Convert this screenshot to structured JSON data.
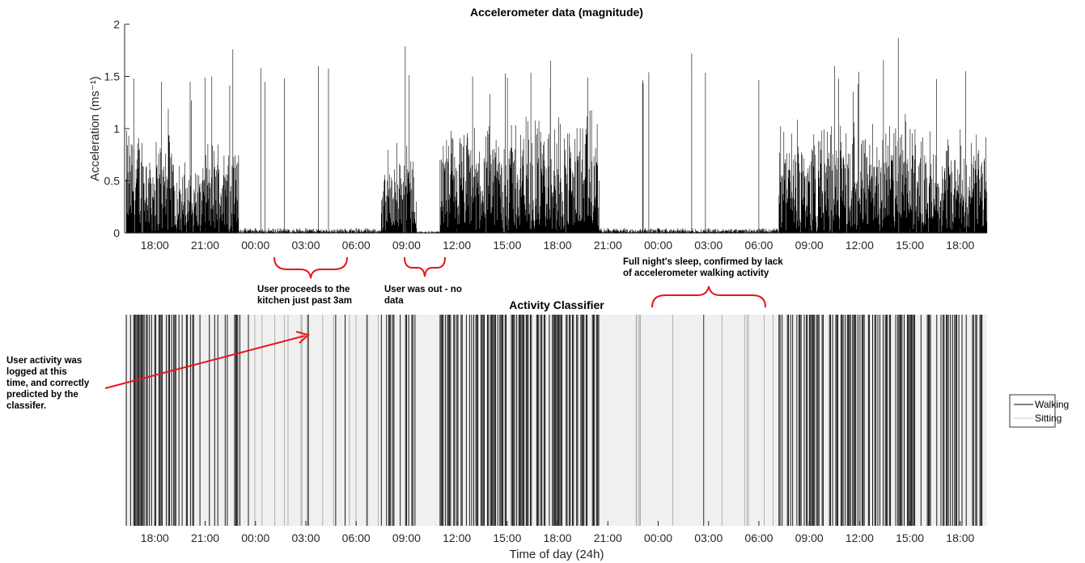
{
  "chart_data": [
    {
      "type": "line",
      "title": "Accelerometer data (magnitude)",
      "ylabel": "Acceleration (ms⁻¹)",
      "xlabel": "",
      "ylim": [
        0,
        2
      ],
      "yticks": [
        "0",
        "0.5",
        "1",
        "1.5",
        "2"
      ],
      "xticks": [
        "18:00",
        "21:00",
        "00:00",
        "03:00",
        "06:00",
        "09:00",
        "12:00",
        "15:00",
        "18:00",
        "21:00",
        "00:00",
        "03:00",
        "06:00",
        "09:00",
        "12:00",
        "15:00",
        "18:00"
      ],
      "x_start_hour": 16.2,
      "x_end_hour": 67.6,
      "grid": false,
      "series": [
        {
          "color": "#000000",
          "segments": [
            {
              "from_hour": 16.3,
              "to_hour": 17.6,
              "typical_max": 1.15,
              "peak": 1.48
            },
            {
              "from_hour": 17.6,
              "to_hour": 19.3,
              "typical_max": 1.05,
              "peak": 1.45
            },
            {
              "from_hour": 19.3,
              "to_hour": 20.8,
              "typical_max": 0.75,
              "peak": 1.45
            },
            {
              "from_hour": 20.8,
              "to_hour": 22.2,
              "typical_max": 1.0,
              "peak": 1.5
            },
            {
              "from_hour": 22.2,
              "to_hour": 23.0,
              "typical_max": 1.05,
              "peak": 1.76
            },
            {
              "from_hour": 23.0,
              "to_hour": 31.5,
              "typical_max": 0.05,
              "peak": 1.6
            },
            {
              "from_hour": 31.5,
              "to_hour": 33.6,
              "typical_max": 0.95,
              "peak": 1.79
            },
            {
              "from_hour": 33.6,
              "to_hour": 35.0,
              "typical_max": 0.02,
              "peak": 0.02
            },
            {
              "from_hour": 35.0,
              "to_hour": 38.0,
              "typical_max": 1.1,
              "peak": 1.5
            },
            {
              "from_hour": 38.0,
              "to_hour": 44.5,
              "typical_max": 1.25,
              "peak": 1.65
            },
            {
              "from_hour": 44.5,
              "to_hour": 55.2,
              "typical_max": 0.05,
              "peak": 1.72
            },
            {
              "from_hour": 55.2,
              "to_hour": 60.0,
              "typical_max": 1.15,
              "peak": 1.6
            },
            {
              "from_hour": 60.0,
              "to_hour": 64.0,
              "typical_max": 1.2,
              "peak": 1.87
            },
            {
              "from_hour": 64.0,
              "to_hour": 67.6,
              "typical_max": 1.05,
              "peak": 1.55
            }
          ]
        }
      ]
    },
    {
      "type": "heatmap",
      "title": "Activity Classifier",
      "xlabel": "Time of day (24h)",
      "ylabel": "",
      "xticks": [
        "18:00",
        "21:00",
        "00:00",
        "03:00",
        "06:00",
        "09:00",
        "12:00",
        "15:00",
        "18:00",
        "21:00",
        "00:00",
        "03:00",
        "06:00",
        "09:00",
        "12:00",
        "15:00",
        "18:00"
      ],
      "x_start_hour": 16.2,
      "x_end_hour": 67.6,
      "legend": {
        "position": "right",
        "entries": [
          {
            "label": "Walking",
            "color": "#000000"
          },
          {
            "label": "Sitting",
            "color": "#f0f0f0"
          }
        ]
      },
      "walking_density": [
        {
          "from_hour": 16.3,
          "to_hour": 18.0,
          "density": 0.7
        },
        {
          "from_hour": 18.0,
          "to_hour": 20.0,
          "density": 0.5
        },
        {
          "from_hour": 20.0,
          "to_hour": 23.2,
          "density": 0.25
        },
        {
          "from_hour": 23.2,
          "to_hour": 31.5,
          "density": 0.03
        },
        {
          "from_hour": 31.5,
          "to_hour": 33.6,
          "density": 0.55
        },
        {
          "from_hour": 33.6,
          "to_hour": 35.0,
          "density": 0.0
        },
        {
          "from_hour": 35.0,
          "to_hour": 38.0,
          "density": 0.45
        },
        {
          "from_hour": 38.0,
          "to_hour": 44.5,
          "density": 0.55
        },
        {
          "from_hour": 44.5,
          "to_hour": 55.2,
          "density": 0.02
        },
        {
          "from_hour": 55.2,
          "to_hour": 67.6,
          "density": 0.5
        }
      ]
    }
  ],
  "annotations": {
    "kitchen": {
      "lines": [
        "User proceeds to the",
        "kitchen just past 3am"
      ]
    },
    "out": {
      "lines": [
        "User was out - no",
        "data"
      ]
    },
    "sleep": {
      "lines": [
        "Full night's sleep, confirmed by lack",
        "of accelerometer walking activity"
      ]
    },
    "logged": {
      "lines": [
        "User activity was",
        "logged at this",
        "time, and correctly",
        "predicted by the",
        "classifer."
      ]
    },
    "annotation_color": "#e8141c"
  }
}
